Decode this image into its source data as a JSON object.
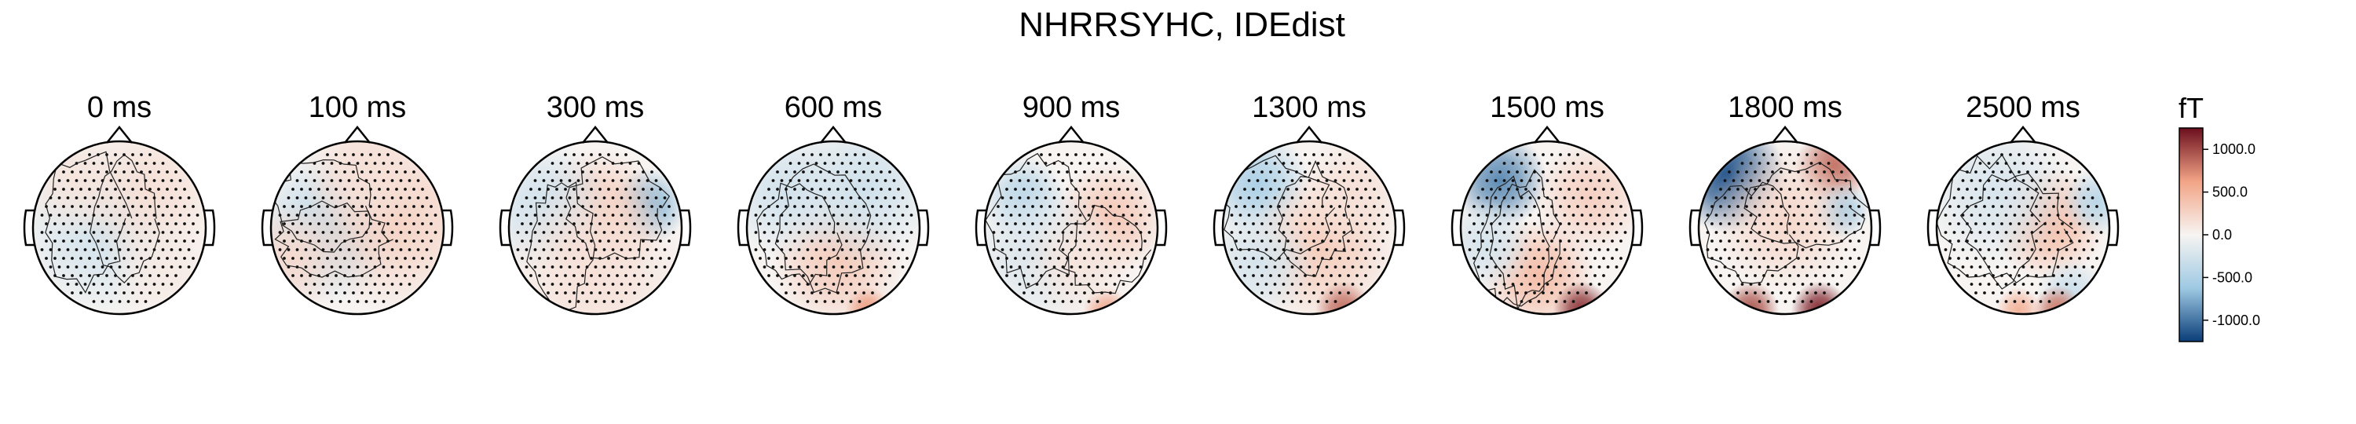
{
  "chart_data": {
    "type": "heatmap",
    "subtype": "topomap",
    "title": "NHRRSYHC, IDEdist",
    "unit": "fT",
    "colorbar": {
      "label": "fT",
      "range": [
        -1250,
        1250
      ],
      "ticks": [
        1000,
        500,
        0,
        -500,
        -1000
      ],
      "tick_labels": [
        "1000.0",
        "500.0",
        "0.0",
        "-500.0",
        "-1000.0"
      ],
      "cmap": "RdBu_r",
      "colors": {
        "neg_max": "#0a3d78",
        "neg_mid": "#9ec9e3",
        "zero": "#f7f4f2",
        "pos_mid": "#f2a486",
        "pos_max": "#6b0f1e"
      }
    },
    "panels": [
      {
        "label": "0 ms",
        "blobs": [
          {
            "x": -0.22,
            "y": -0.05,
            "s": 0.45,
            "v": -250
          },
          {
            "x": 0.35,
            "y": 0.4,
            "s": 0.4,
            "v": 160
          },
          {
            "x": -0.5,
            "y": 0.55,
            "s": 0.3,
            "v": 120
          },
          {
            "x": 0.5,
            "y": -0.5,
            "s": 0.3,
            "v": 80
          }
        ]
      },
      {
        "label": "100 ms",
        "blobs": [
          {
            "x": -0.35,
            "y": 0.0,
            "s": 0.4,
            "v": -380
          },
          {
            "x": 0.45,
            "y": 0.1,
            "s": 0.5,
            "v": 260
          },
          {
            "x": -0.75,
            "y": -0.35,
            "s": 0.3,
            "v": 200
          },
          {
            "x": 0.1,
            "y": 0.7,
            "s": 0.35,
            "v": 150
          }
        ]
      },
      {
        "label": "300 ms",
        "blobs": [
          {
            "x": 0.62,
            "y": 0.25,
            "s": 0.2,
            "v": -700
          },
          {
            "x": 0.05,
            "y": 0.15,
            "s": 0.35,
            "v": 320
          },
          {
            "x": -0.6,
            "y": 0.25,
            "s": 0.35,
            "v": -260
          },
          {
            "x": 0.0,
            "y": -0.55,
            "s": 0.5,
            "v": 150
          }
        ]
      },
      {
        "label": "600 ms",
        "blobs": [
          {
            "x": 0.05,
            "y": -0.4,
            "s": 0.35,
            "v": 320
          },
          {
            "x": 0.35,
            "y": 0.45,
            "s": 0.4,
            "v": -280
          },
          {
            "x": -0.55,
            "y": 0.4,
            "s": 0.35,
            "v": -260
          },
          {
            "x": 0.4,
            "y": -0.95,
            "s": 0.12,
            "v": 650
          }
        ]
      },
      {
        "label": "900 ms",
        "blobs": [
          {
            "x": -0.55,
            "y": 0.35,
            "s": 0.22,
            "v": -450
          },
          {
            "x": 0.45,
            "y": 0.1,
            "s": 0.3,
            "v": 340
          },
          {
            "x": -0.4,
            "y": -0.3,
            "s": 0.4,
            "v": -200
          },
          {
            "x": 0.4,
            "y": -0.95,
            "s": 0.12,
            "v": 650
          },
          {
            "x": 0.1,
            "y": -0.4,
            "s": 0.3,
            "v": 120
          }
        ]
      },
      {
        "label": "1300 ms",
        "blobs": [
          {
            "x": -0.6,
            "y": 0.5,
            "s": 0.28,
            "v": -520
          },
          {
            "x": 0.15,
            "y": -0.25,
            "s": 0.4,
            "v": 300
          },
          {
            "x": -0.6,
            "y": -0.4,
            "s": 0.3,
            "v": -230
          },
          {
            "x": 0.4,
            "y": -0.95,
            "s": 0.15,
            "v": 850
          },
          {
            "x": 0.5,
            "y": 0.4,
            "s": 0.3,
            "v": 160
          }
        ]
      },
      {
        "label": "1500 ms",
        "blobs": [
          {
            "x": -0.55,
            "y": 0.55,
            "s": 0.25,
            "v": -900
          },
          {
            "x": -0.1,
            "y": -0.55,
            "s": 0.3,
            "v": 420
          },
          {
            "x": 0.4,
            "y": -0.95,
            "s": 0.15,
            "v": 1100
          },
          {
            "x": 0.5,
            "y": 0.35,
            "s": 0.3,
            "v": 280
          },
          {
            "x": -0.7,
            "y": -0.2,
            "s": 0.25,
            "v": -230
          }
        ]
      },
      {
        "label": "1800 ms",
        "blobs": [
          {
            "x": -0.65,
            "y": 0.6,
            "s": 0.3,
            "v": -1150
          },
          {
            "x": 0.55,
            "y": 0.7,
            "s": 0.2,
            "v": 850
          },
          {
            "x": 0.4,
            "y": -0.95,
            "s": 0.15,
            "v": 1150
          },
          {
            "x": -0.4,
            "y": -0.95,
            "s": 0.15,
            "v": 950
          },
          {
            "x": 0.65,
            "y": 0.2,
            "s": 0.15,
            "v": -600
          },
          {
            "x": 0.0,
            "y": 0.1,
            "s": 0.4,
            "v": 220
          }
        ]
      },
      {
        "label": "2500 ms",
        "blobs": [
          {
            "x": 0.3,
            "y": 0.05,
            "s": 0.3,
            "v": 420
          },
          {
            "x": -0.3,
            "y": 0.4,
            "s": 0.4,
            "v": -220
          },
          {
            "x": 0.85,
            "y": 0.3,
            "s": 0.18,
            "v": -420
          },
          {
            "x": 0.55,
            "y": -0.75,
            "s": 0.18,
            "v": -300
          },
          {
            "x": 0.4,
            "y": -0.95,
            "s": 0.13,
            "v": 800
          },
          {
            "x": -0.05,
            "y": -0.95,
            "s": 0.12,
            "v": 500
          }
        ]
      }
    ]
  }
}
